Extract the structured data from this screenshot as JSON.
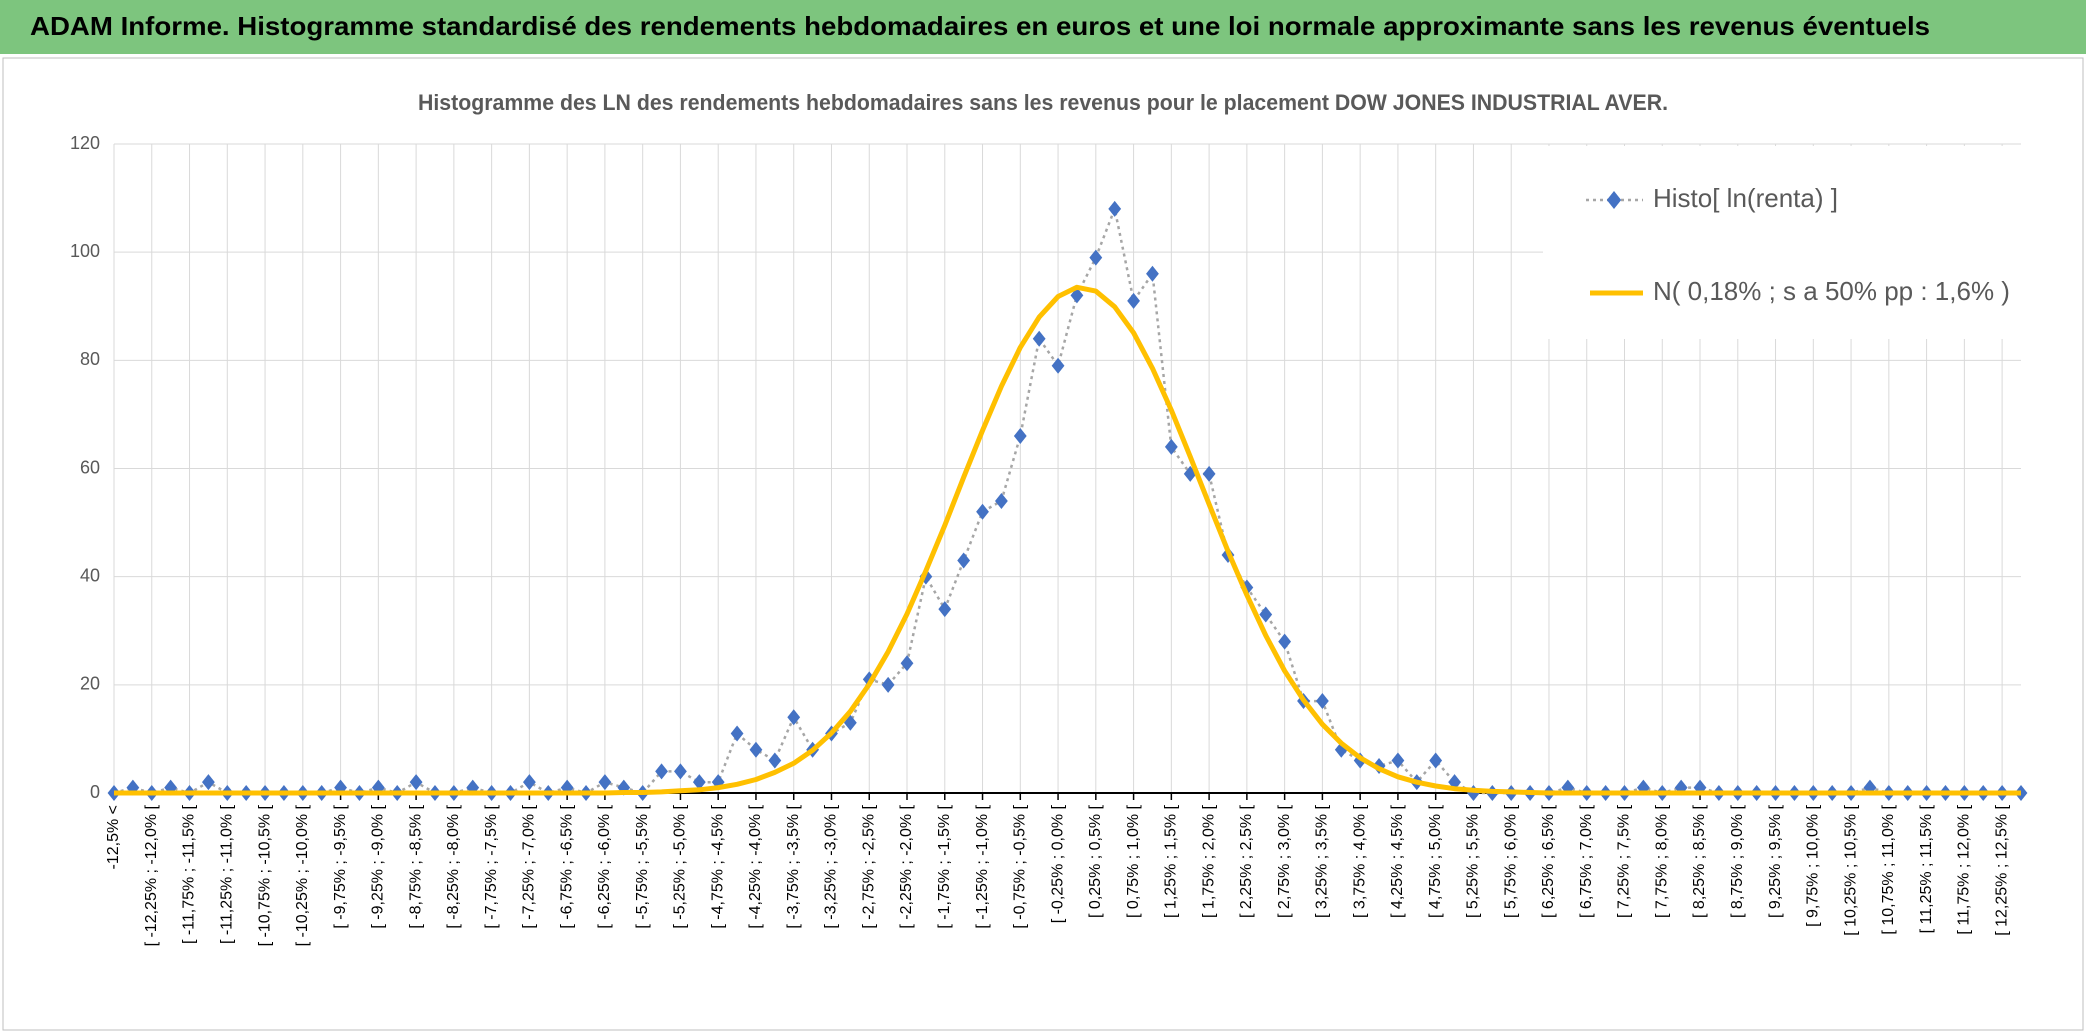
{
  "header": {
    "title": "ADAM Informe. Histogramme standardisé des rendements hebdomadaires en euros et une loi normale approximante sans les revenus éventuels"
  },
  "chart_data": {
    "type": "line",
    "title": "Histogramme des LN des rendements hebdomadaires sans les revenus pour le placement DOW JONES INDUSTRIAL AVER.",
    "categories": [
      "-12,5% <",
      null,
      "[ -12,25% ; -12,0% [",
      null,
      "[ -11,75% ; -11,5% [",
      null,
      "[ -11,25% ; -11,0% [",
      null,
      "[ -10,75% ; -10,5% [",
      null,
      "[ -10,25% ; -10,0% [",
      null,
      "[ -9,75% ; -9,5% [",
      null,
      "[ -9,25% ; -9,0% [",
      null,
      "[ -8,75% ; -8,5% [",
      null,
      "[ -8,25% ; -8,0% [",
      null,
      "[ -7,75% ; -7,5% [",
      null,
      "[ -7,25% ; -7,0% [",
      null,
      "[ -6,75% ; -6,5% [",
      null,
      "[ -6,25% ; -6,0% [",
      null,
      "[ -5,75% ; -5,5% [",
      null,
      "[ -5,25% ; -5,0% [",
      null,
      "[ -4,75% ; -4,5% [",
      null,
      "[ -4,25% ; -4,0% [",
      null,
      "[ -3,75% ; -3,5% [",
      null,
      "[ -3,25% ; -3,0% [",
      null,
      "[ -2,75% ; -2,5% [",
      null,
      "[ -2,25% ; -2,0% [",
      null,
      "[ -1,75% ; -1,5% [",
      null,
      "[ -1,25% ; -1,0% [",
      null,
      "[ -0,75% ; -0,5% [",
      null,
      "[ -0,25% ; 0,0% [",
      null,
      "[ 0,25% ; 0,5% [",
      null,
      "[ 0,75% ; 1,0% [",
      null,
      "[ 1,25% ; 1,5% [",
      null,
      "[ 1,75% ; 2,0% [",
      null,
      "[ 2,25% ; 2,5% [",
      null,
      "[ 2,75% ; 3,0% [",
      null,
      "[ 3,25% ; 3,5% [",
      null,
      "[ 3,75% ; 4,0% [",
      null,
      "[ 4,25% ; 4,5% [",
      null,
      "[ 4,75% ; 5,0% [",
      null,
      "[ 5,25% ; 5,5% [",
      null,
      "[ 5,75% ; 6,0% [",
      null,
      "[ 6,25% ; 6,5% [",
      null,
      "[ 6,75% ; 7,0% [",
      null,
      "[ 7,25% ; 7,5% [",
      null,
      "[ 7,75% ; 8,0% [",
      null,
      "[ 8,25% ; 8,5% [",
      null,
      "[ 8,75% ; 9,0% [",
      null,
      "[ 9,25% ; 9,5% [",
      null,
      "[ 9,75% ; 10,0% [",
      null,
      "[ 10,25% ; 10,5% [",
      null,
      "[ 10,75% ; 11,0% [",
      null,
      "[ 11,25% ; 11,5% [",
      null,
      "[ 11,75% ; 12,0% [",
      null,
      "[ 12,25% ; 12,5% [",
      null
    ],
    "series": [
      {
        "name": "Histo[ ln(renta) ]",
        "color": "#4472c4",
        "line_color": "#a6a6a6",
        "values": [
          0,
          1,
          0,
          1,
          0,
          2,
          0,
          0,
          0,
          0,
          0,
          0,
          1,
          0,
          1,
          0,
          2,
          0,
          0,
          1,
          0,
          0,
          2,
          0,
          1,
          0,
          2,
          1,
          0,
          4,
          4,
          2,
          2,
          11,
          8,
          6,
          14,
          8,
          11,
          13,
          21,
          20,
          24,
          40,
          34,
          43,
          52,
          54,
          66,
          84,
          79,
          92,
          99,
          108,
          91,
          96,
          64,
          59,
          59,
          44,
          38,
          33,
          28,
          17,
          17,
          8,
          6,
          5,
          6,
          2,
          6,
          2,
          0,
          0,
          0,
          0,
          0,
          1,
          0,
          0,
          0,
          1,
          0,
          1,
          1,
          0,
          0,
          0,
          0,
          0,
          0,
          0,
          0,
          1,
          0,
          0,
          0,
          0,
          0,
          0,
          0,
          0
        ]
      },
      {
        "name": "N( 0,18% ; s a 50% pp : 1,6% )",
        "color": "#ffc000",
        "values": [
          0,
          0,
          0,
          0,
          0,
          0,
          0,
          0,
          0,
          0,
          0,
          0,
          0,
          0,
          0,
          0,
          0,
          0,
          0,
          0,
          0,
          0,
          0,
          0,
          0,
          0,
          0,
          0.1,
          0.1,
          0.2,
          0.4,
          0.6,
          1.0,
          1.6,
          2.5,
          3.8,
          5.5,
          7.9,
          11.1,
          15.1,
          20.1,
          26.1,
          33.1,
          41.1,
          49.5,
          58.4,
          67.0,
          75.2,
          82.4,
          88.0,
          91.8,
          93.5,
          92.8,
          89.9,
          85.1,
          78.5,
          70.8,
          62.2,
          53.4,
          44.7,
          36.6,
          29.1,
          22.6,
          17.2,
          12.7,
          9.2,
          6.5,
          4.5,
          3.0,
          2.0,
          1.3,
          0.8,
          0.5,
          0.3,
          0.2,
          0.1,
          0,
          0,
          0,
          0,
          0,
          0,
          0,
          0,
          0,
          0,
          0,
          0,
          0,
          0,
          0,
          0,
          0,
          0,
          0,
          0,
          0,
          0,
          0,
          0,
          0,
          0
        ]
      }
    ],
    "ylim": [
      0,
      120
    ],
    "yticks": [
      0,
      20,
      40,
      60,
      80,
      100,
      120
    ],
    "grid": true,
    "legend": "top-right"
  }
}
